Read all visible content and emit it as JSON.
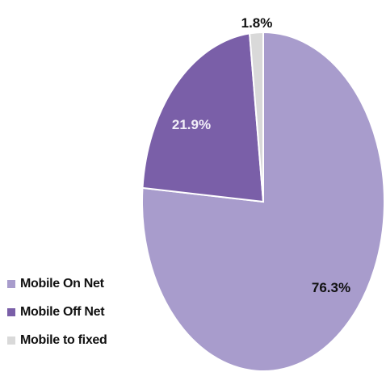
{
  "chart_data": {
    "type": "pie",
    "slices": [
      {
        "name": "Mobile  On Net",
        "value": 76.3,
        "label": "76.3%",
        "color": "#a89ccc",
        "label_color": "#111111"
      },
      {
        "name": "Mobile Off Net",
        "value": 21.9,
        "label": "21.9%",
        "color": "#7a5fa8",
        "label_color": "#f2eef8"
      },
      {
        "name": "Mobile to fixed",
        "value": 1.8,
        "label": "1.8%",
        "color": "#d9d9d9",
        "label_color": "#111111"
      }
    ],
    "legend_position": "bottom-left"
  }
}
